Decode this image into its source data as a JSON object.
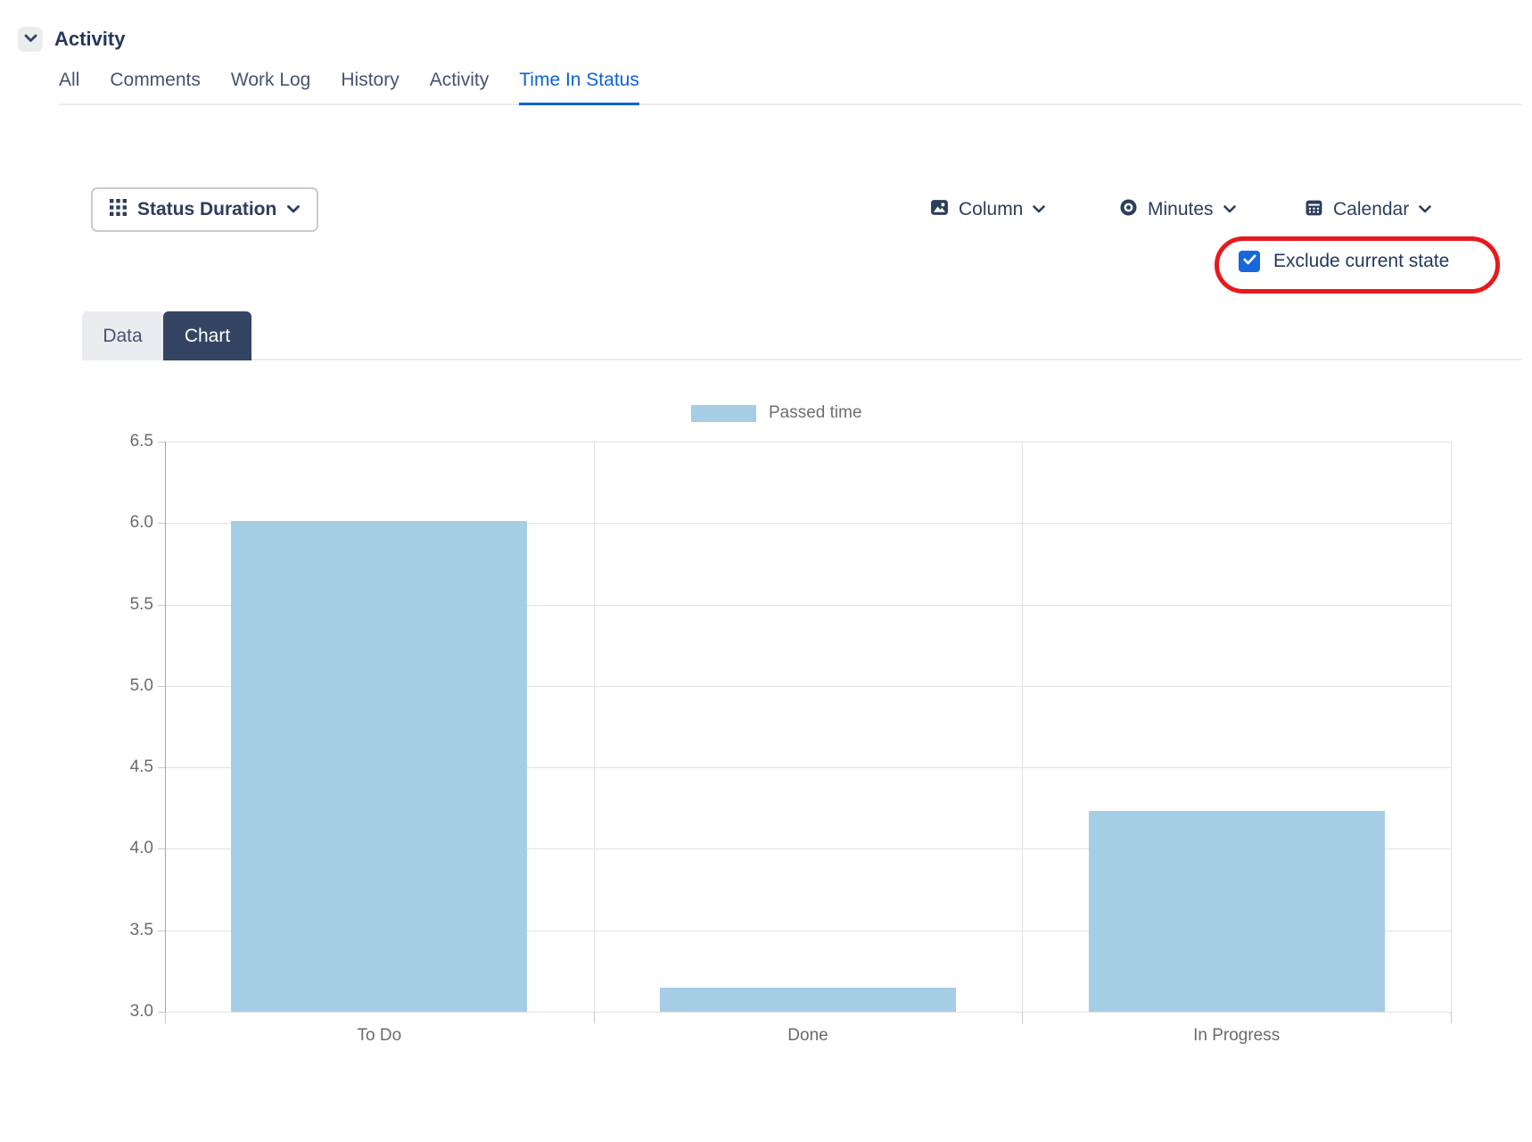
{
  "header": {
    "title": "Activity",
    "collapse_icon": "chevron-down-icon"
  },
  "activity_tabs": [
    {
      "label": "All",
      "active": false
    },
    {
      "label": "Comments",
      "active": false
    },
    {
      "label": "Work Log",
      "active": false
    },
    {
      "label": "History",
      "active": false
    },
    {
      "label": "Activity",
      "active": false
    },
    {
      "label": "Time In Status",
      "active": true
    }
  ],
  "toolbar": {
    "view_selector": {
      "label": "Status Duration",
      "icon": "grid-icon"
    },
    "controls": [
      {
        "id": "column",
        "label": "Column",
        "icon": "image-icon"
      },
      {
        "id": "minutes",
        "label": "Minutes",
        "icon": "eye-icon"
      },
      {
        "id": "calendar",
        "label": "Calendar",
        "icon": "calendar-icon"
      }
    ],
    "exclude_current_state": {
      "label": "Exclude current state",
      "checked": true,
      "annotated": true
    }
  },
  "view_switch": [
    {
      "label": "Data",
      "active": false
    },
    {
      "label": "Chart",
      "active": true
    }
  ],
  "chart_data": {
    "type": "bar",
    "title": "",
    "categories": [
      "To Do",
      "Done",
      "In Progress"
    ],
    "series": [
      {
        "name": "Passed time",
        "color": "#a5cee4",
        "values": [
          6.01,
          3.15,
          4.23
        ]
      }
    ],
    "ylim": [
      3.0,
      6.5
    ],
    "ytick_step": 0.5,
    "ytick_labels": [
      "3.0",
      "3.5",
      "4.0",
      "4.5",
      "5.0",
      "5.5",
      "6.0",
      "6.5"
    ],
    "grid": true,
    "legend_position": "top"
  },
  "colors": {
    "active_tab": "#0b63d6",
    "checkbox": "#1868db",
    "annotation": "#e8191c",
    "bar": "#a5cee4",
    "control_text": "#2c3e5c"
  }
}
